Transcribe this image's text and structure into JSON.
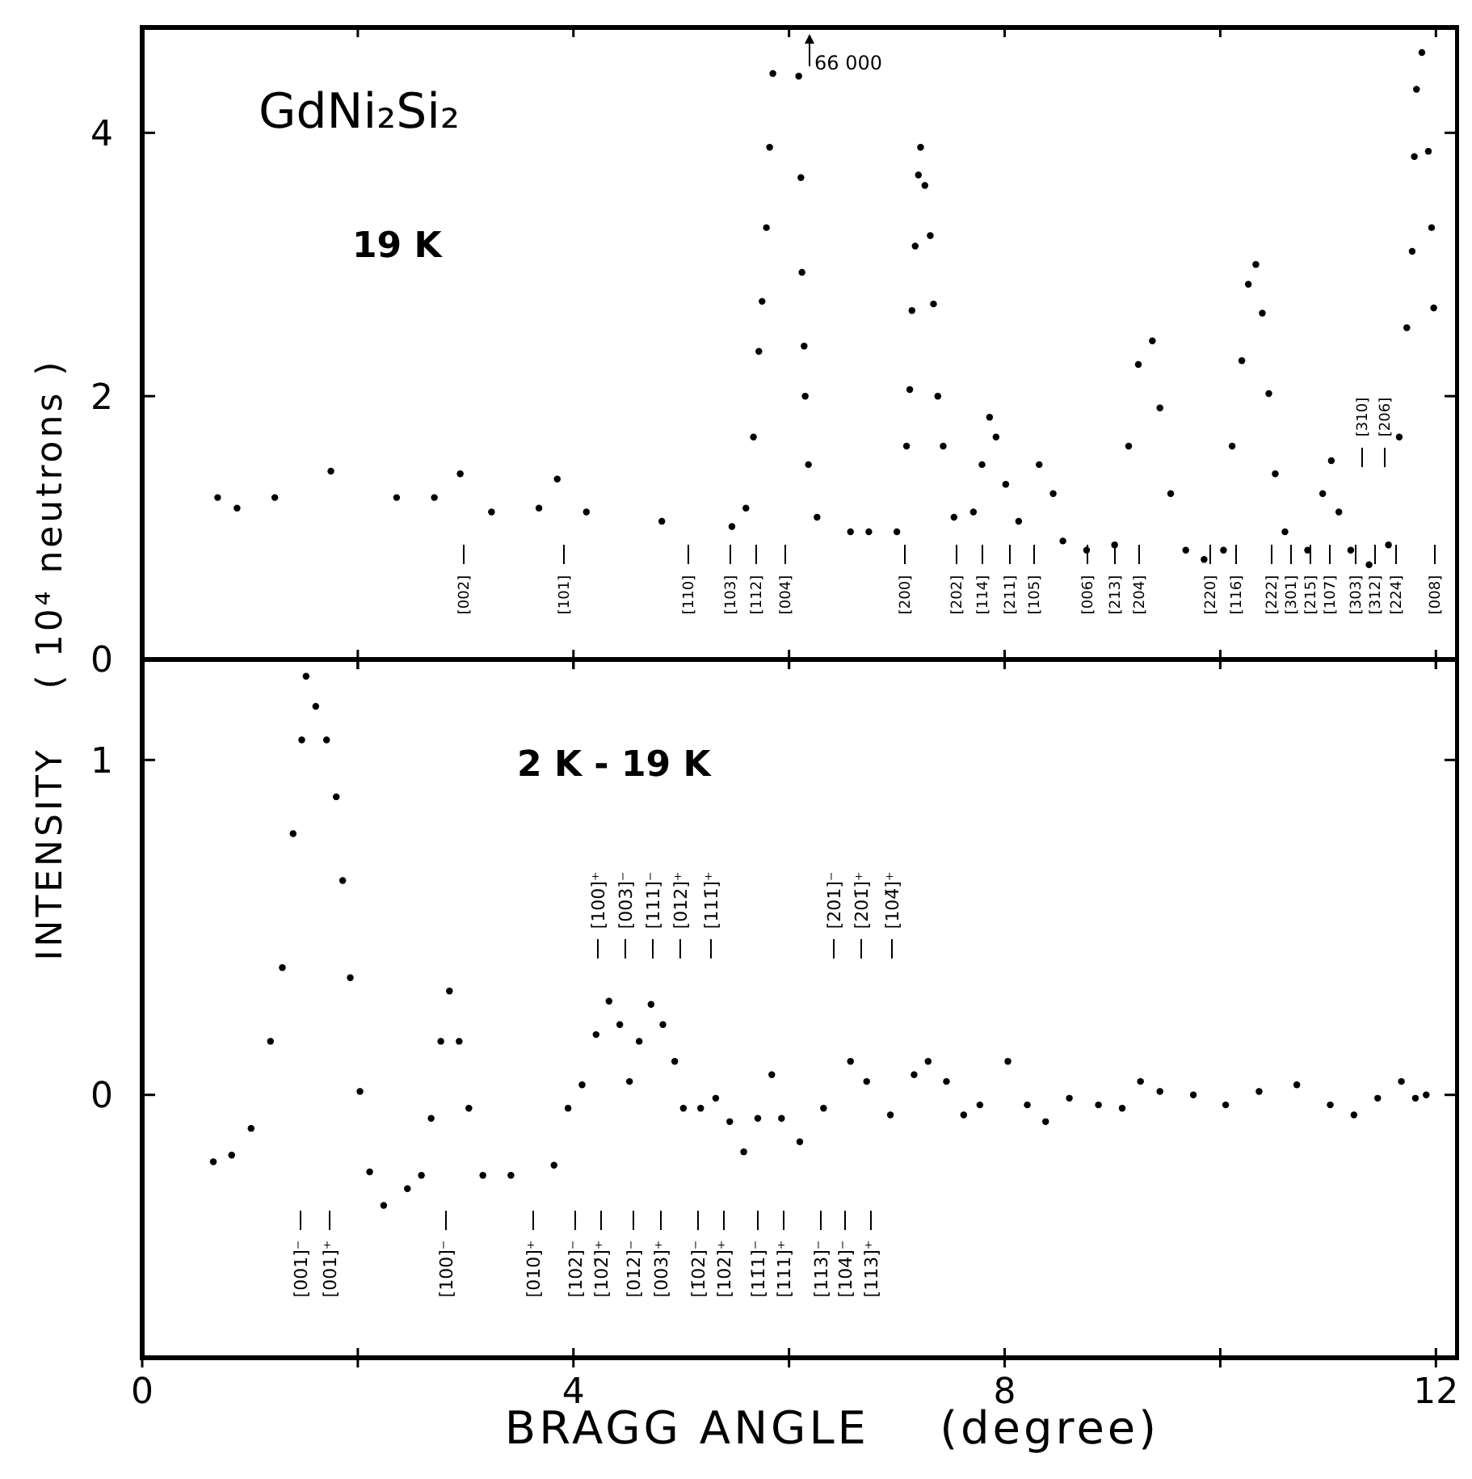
{
  "chart_data": [
    {
      "type": "scatter",
      "title": "GdNi₂Si₂",
      "subtitle": "19 K",
      "ylabel": "INTENSITY    ( 10⁴ neutrons )",
      "marker": "circle",
      "tick_labels": "y",
      "xlim": [
        0,
        12.2
      ],
      "ylim": [
        0,
        4.8
      ],
      "yticks": [
        0,
        2,
        4
      ],
      "xticks": [
        {
          "value": 2,
          "label": null
        },
        {
          "value": 4,
          "label": null
        },
        {
          "value": 6,
          "label": null
        },
        {
          "value": 8,
          "label": null
        },
        {
          "value": 10,
          "label": null
        },
        {
          "value": 12,
          "label": null
        }
      ],
      "series": [
        {
          "color": "#000000",
          "x": [
            0.7,
            0.88,
            1.23,
            1.75,
            2.36,
            2.71,
            2.95,
            3.24,
            3.68,
            3.85,
            4.12,
            4.82,
            5.47,
            5.6,
            5.67,
            5.72,
            5.75,
            5.79,
            5.82,
            5.85,
            6.09,
            6.11,
            6.12,
            6.14,
            6.15,
            6.18,
            6.26,
            6.57,
            6.74,
            7.0,
            7.09,
            7.12,
            7.14,
            7.17,
            7.2,
            7.22,
            7.26,
            7.31,
            7.34,
            7.38,
            7.43,
            7.53,
            7.71,
            7.79,
            7.86,
            7.92,
            8.01,
            8.13,
            8.32,
            8.45,
            8.54,
            8.76,
            9.02,
            9.15,
            9.24,
            9.37,
            9.44,
            9.54,
            9.68,
            9.85,
            10.03,
            10.11,
            10.2,
            10.26,
            10.33,
            10.39,
            10.45,
            10.51,
            10.6,
            10.81,
            10.95,
            11.03,
            11.1,
            11.21,
            11.38,
            11.56,
            11.66,
            11.73,
            11.78,
            11.8,
            11.82,
            11.87,
            11.93,
            11.96,
            11.98
          ],
          "values": [
            1.23,
            1.15,
            1.23,
            1.43,
            1.23,
            1.23,
            1.41,
            1.12,
            1.15,
            1.37,
            1.12,
            1.05,
            1.01,
            1.15,
            1.69,
            2.34,
            2.72,
            3.28,
            3.89,
            4.45,
            4.43,
            3.66,
            2.94,
            2.38,
            2.0,
            1.48,
            1.08,
            0.97,
            0.97,
            0.97,
            1.62,
            2.05,
            2.65,
            3.14,
            3.68,
            3.89,
            3.6,
            3.22,
            2.7,
            2.0,
            1.62,
            1.08,
            1.12,
            1.48,
            1.84,
            1.69,
            1.33,
            1.05,
            1.48,
            1.26,
            0.9,
            0.83,
            0.87,
            1.62,
            2.24,
            2.42,
            1.91,
            1.26,
            0.83,
            0.76,
            0.83,
            1.62,
            2.27,
            2.85,
            3.0,
            2.63,
            2.02,
            1.41,
            0.97,
            0.83,
            1.26,
            1.51,
            1.12,
            0.83,
            0.72,
            0.87,
            1.69,
            2.52,
            3.1,
            3.82,
            4.33,
            4.61,
            3.86,
            3.28,
            2.67
          ]
        }
      ],
      "annotations": [
        "66 000",
        "[002]",
        "[101]",
        "[110]",
        "[103]",
        "[112]",
        "[004]",
        "[200]",
        "[202]",
        "[114]",
        "[211]",
        "[105]",
        "[006]",
        "[213]",
        "[204]",
        "[220]",
        "[116]",
        "[222]",
        "[301]",
        "[215]",
        "[107]",
        "[303]",
        "[312]",
        "[224]",
        "[008]",
        "[310]",
        "[206]"
      ]
    },
    {
      "type": "scatter",
      "title": "2 K - 19 K",
      "xlabel": "BRAGG ANGLE    (degree)",
      "marker": "circle",
      "xlim": [
        0,
        12.2
      ],
      "ylim": [
        -0.785,
        1.3
      ],
      "yticks": [
        0,
        1
      ],
      "xticks": [
        0,
        {
          "value": 2,
          "label": null
        },
        4,
        {
          "value": 6,
          "label": null
        },
        8,
        {
          "value": 10,
          "label": null
        },
        12
      ],
      "series": [
        {
          "color": "#000000",
          "x": [
            0.66,
            0.83,
            1.01,
            1.19,
            1.3,
            1.4,
            1.48,
            1.52,
            1.61,
            1.71,
            1.8,
            1.86,
            1.93,
            2.02,
            2.11,
            2.24,
            2.46,
            2.59,
            2.68,
            2.77,
            2.85,
            2.94,
            3.03,
            3.16,
            3.42,
            3.82,
            3.95,
            4.08,
            4.21,
            4.33,
            4.43,
            4.52,
            4.61,
            4.72,
            4.83,
            4.94,
            5.02,
            5.18,
            5.32,
            5.45,
            5.58,
            5.71,
            5.84,
            5.93,
            6.1,
            6.32,
            6.57,
            6.72,
            6.94,
            7.16,
            7.29,
            7.46,
            7.62,
            7.77,
            8.03,
            8.21,
            8.38,
            8.6,
            8.87,
            9.09,
            9.26,
            9.44,
            9.75,
            10.05,
            10.36,
            10.71,
            11.02,
            11.24,
            11.46,
            11.68,
            11.81,
            11.91
          ],
          "values": [
            -0.2,
            -0.18,
            -0.1,
            0.16,
            0.38,
            0.78,
            1.06,
            1.25,
            1.16,
            1.06,
            0.89,
            0.64,
            0.35,
            0.01,
            -0.23,
            -0.33,
            -0.28,
            -0.24,
            -0.07,
            0.16,
            0.31,
            0.16,
            -0.04,
            -0.24,
            -0.24,
            -0.21,
            -0.04,
            0.03,
            0.18,
            0.28,
            0.21,
            0.04,
            0.16,
            0.27,
            0.21,
            0.1,
            -0.04,
            -0.04,
            -0.01,
            -0.08,
            -0.17,
            -0.07,
            0.06,
            -0.07,
            -0.14,
            -0.04,
            0.1,
            0.04,
            -0.06,
            0.06,
            0.1,
            0.04,
            -0.06,
            -0.03,
            0.1,
            -0.03,
            -0.08,
            -0.01,
            -0.03,
            -0.04,
            0.04,
            0.01,
            0.0,
            -0.03,
            0.01,
            0.03,
            -0.03,
            -0.06,
            -0.01,
            0.04,
            -0.01,
            0.0
          ]
        }
      ],
      "annotations": [
        "[001]⁻",
        "[001]⁺",
        "[100]⁻",
        "[010]⁺",
        "[102]⁻",
        "[102̄]⁺",
        "[012]⁻",
        "[003]⁺",
        "[1̄02]⁻",
        "[102]⁺",
        "[11̄1]⁻",
        "[111]⁺",
        "[113]⁻",
        "[104]⁻",
        "[113]⁺",
        "[100]⁺",
        "[003]⁻",
        "[111]⁻",
        "[012]⁺",
        "[111̄]⁺",
        "[201]⁻",
        "[201̄]⁺",
        "[104̄]⁺"
      ]
    }
  ]
}
